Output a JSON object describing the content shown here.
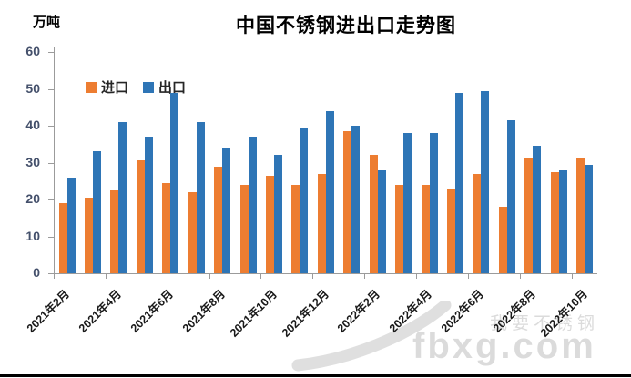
{
  "header": {
    "title": "中国不锈钢进出口走势图",
    "unit_label": "万吨"
  },
  "legend": {
    "items": [
      {
        "label": "进口",
        "color": "#ED7D31"
      },
      {
        "label": "出口",
        "color": "#2E75B6"
      }
    ]
  },
  "watermark": {
    "brand": "fbxg.com",
    "slogan": "我要不锈钢"
  },
  "chart_data": {
    "type": "bar",
    "title": "中国不锈钢进出口走势图",
    "ylabel": "万吨",
    "xlabel": "",
    "ylim": [
      0,
      60
    ],
    "ytick_step": 10,
    "y_tick_labels": [
      "0",
      "10",
      "20",
      "30",
      "40",
      "50",
      "60"
    ],
    "grid": false,
    "legend_position": "top-left-inside",
    "categories": [
      "2021年2月",
      "2021年3月",
      "2021年4月",
      "2021年5月",
      "2021年6月",
      "2021年7月",
      "2021年8月",
      "2021年9月",
      "2021年10月",
      "2021年11月",
      "2021年12月",
      "2022年1月",
      "2022年2月",
      "2022年3月",
      "2022年4月",
      "2022年5月",
      "2022年6月",
      "2022年7月",
      "2022年8月",
      "2022年9月",
      "2022年10月"
    ],
    "x_tick_labels": [
      "2021年2月",
      "2021年4月",
      "2021年6月",
      "2021年8月",
      "2021年10月",
      "2021年12月",
      "2022年2月",
      "2022年4月",
      "2022年6月",
      "2022年8月",
      "2022年10月"
    ],
    "series": [
      {
        "name": "进口",
        "color": "#ED7D31",
        "values": [
          19,
          20.5,
          22.5,
          30.5,
          24.5,
          22,
          29,
          24,
          26.5,
          24,
          27,
          38.5,
          32,
          24,
          24,
          23,
          27,
          18,
          31,
          27.5,
          31
        ]
      },
      {
        "name": "出口",
        "color": "#2E75B6",
        "values": [
          26,
          33,
          41,
          37,
          49,
          41,
          34,
          37,
          32,
          39.5,
          44,
          40,
          28,
          38,
          38,
          49,
          49.5,
          41.5,
          34.5,
          28,
          29.5
        ]
      }
    ]
  }
}
